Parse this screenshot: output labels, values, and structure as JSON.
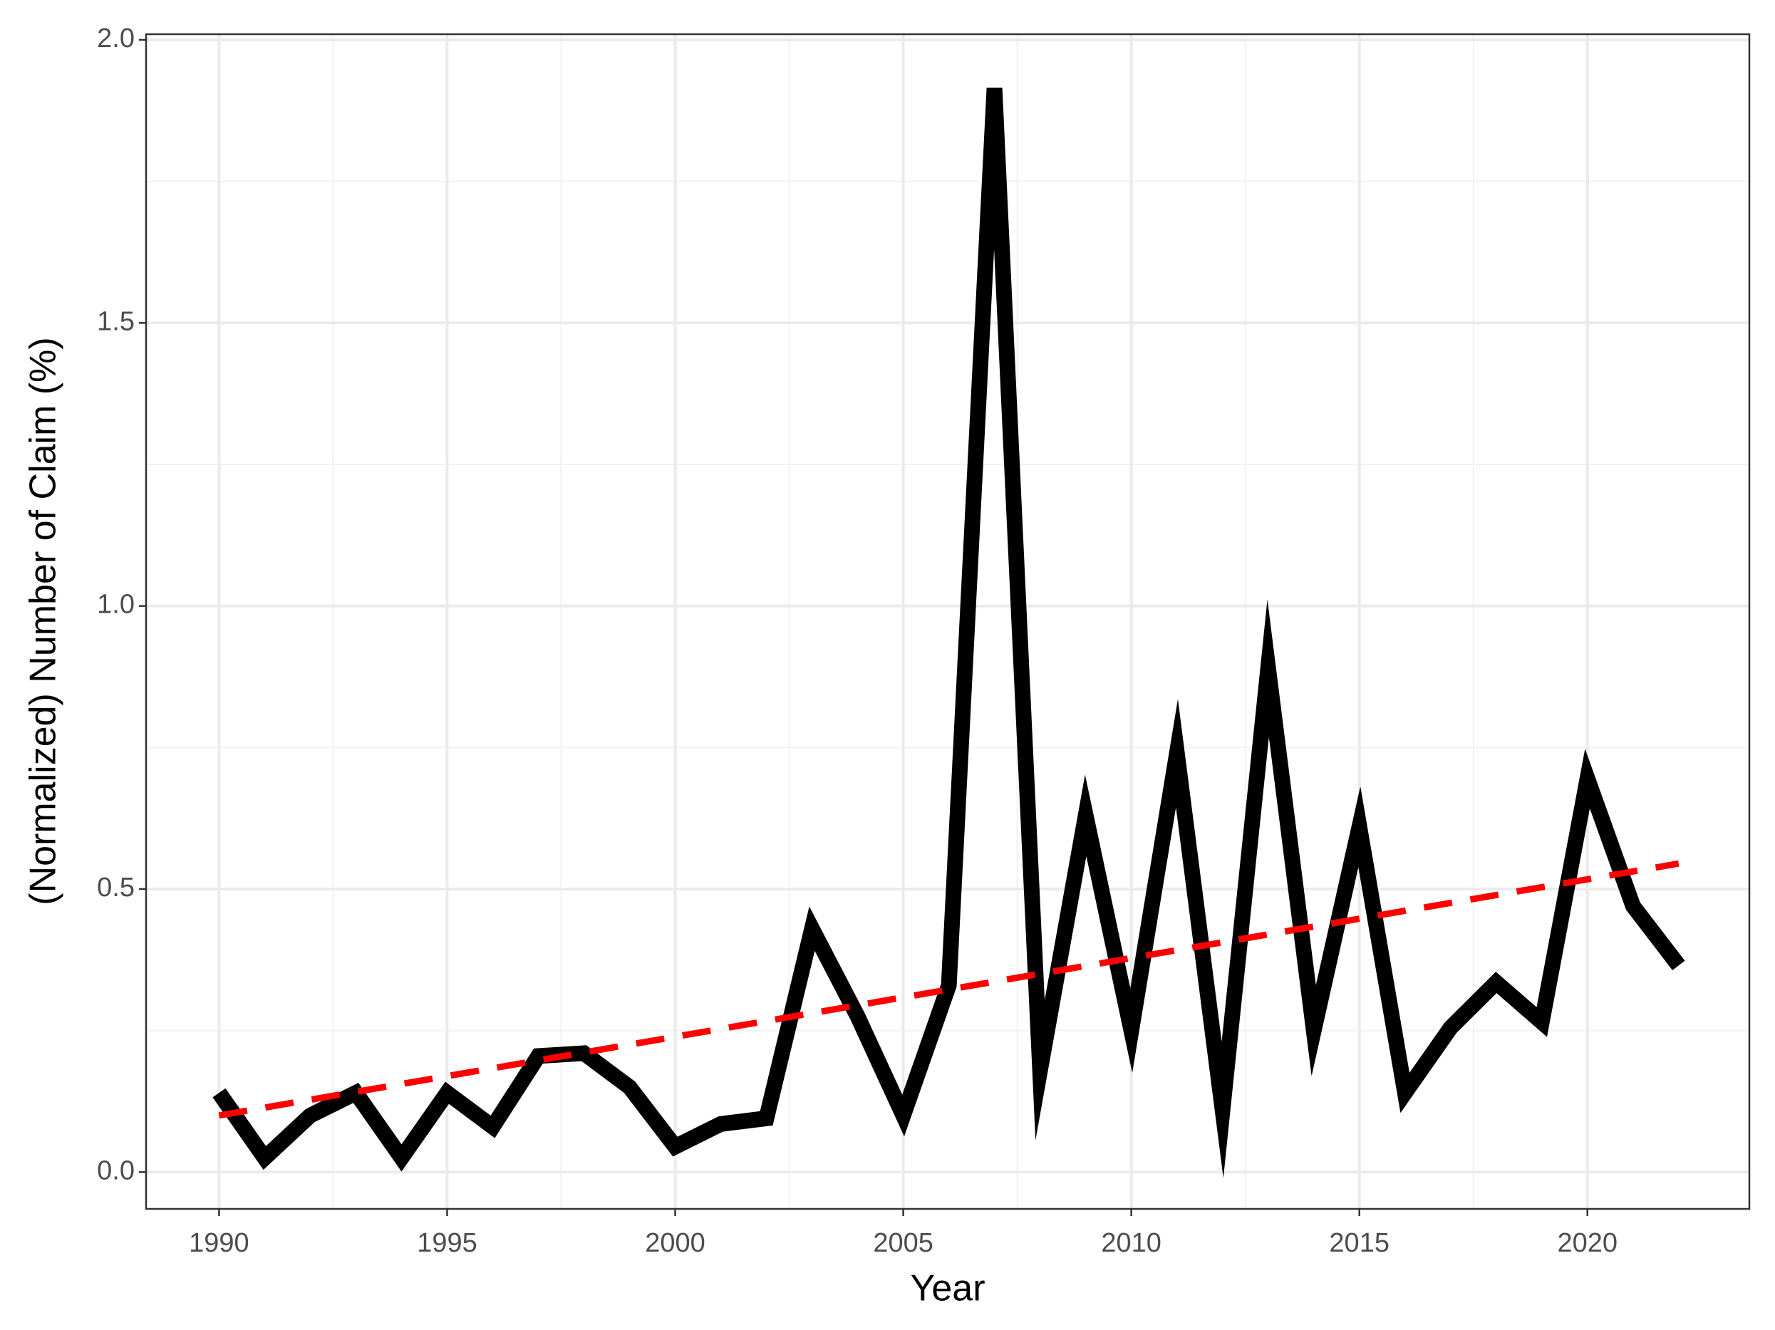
{
  "chart_data": {
    "type": "line",
    "x_label": "Year",
    "y_label": "(Normalized) Number of Claim (%)",
    "x": [
      1990,
      1991,
      1992,
      1993,
      1994,
      1995,
      1996,
      1997,
      1998,
      1999,
      2000,
      2001,
      2002,
      2003,
      2004,
      2005,
      2006,
      2007,
      2008,
      2009,
      2010,
      2011,
      2012,
      2013,
      2014,
      2015,
      2016,
      2017,
      2018,
      2019,
      2020,
      2021,
      2022
    ],
    "series": [
      {
        "color": "#000000",
        "style": "solid",
        "values": [
          0.14,
          0.025,
          0.1,
          0.14,
          0.025,
          0.14,
          0.08,
          0.205,
          0.21,
          0.15,
          0.045,
          0.085,
          0.095,
          0.43,
          0.275,
          0.1,
          0.33,
          1.915,
          0.18,
          0.63,
          0.25,
          0.74,
          0.11,
          0.89,
          0.25,
          0.61,
          0.14,
          0.255,
          0.335,
          0.265,
          0.695,
          0.47,
          0.365
        ]
      },
      {
        "color": "#ff0000",
        "style": "dashed",
        "x": [
          1990,
          2022
        ],
        "values": [
          0.1,
          0.545
        ]
      }
    ],
    "xlim": [
      1988.4,
      2023.55
    ],
    "ylim": [
      -0.065,
      2.01
    ],
    "xticks": [
      1990,
      1995,
      2000,
      2005,
      2010,
      2015,
      2020
    ],
    "yticks": [
      {
        "value": 0,
        "label": "0.0"
      },
      0.5,
      {
        "value": 1,
        "label": "1.0"
      },
      1.5,
      {
        "value": 2,
        "label": "2.0"
      }
    ],
    "grid": true,
    "minor_grid": true
  }
}
